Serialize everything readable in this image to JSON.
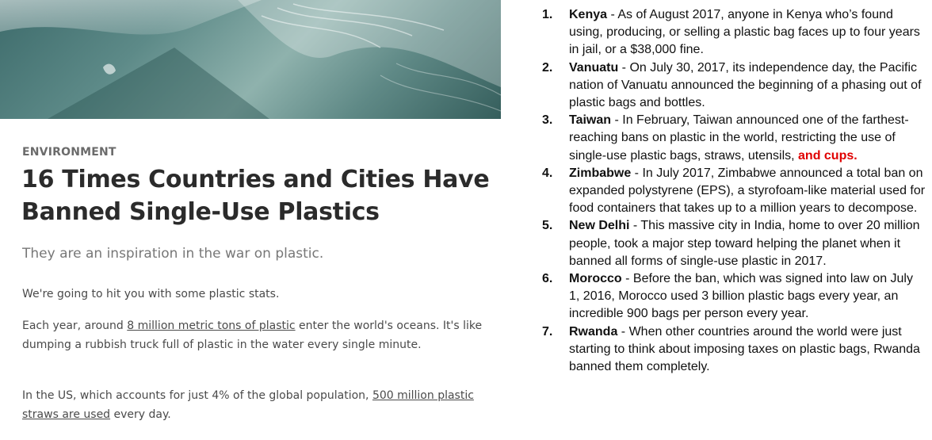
{
  "article": {
    "category": "ENVIRONMENT",
    "title": "16 Times Countries and Cities Have Banned Single-Use Plastics",
    "subtitle": "They are an inspiration in the war on plastic.",
    "p1": "We're going to hit you with some plastic stats.",
    "p2_before": "Each year, around ",
    "p2_link": "8 million metric tons of plastic",
    "p2_after": " enter the world's oceans. It's like dumping a rubbish truck full of plastic in the water every single minute.",
    "p3_before": "In the US, which accounts for just 4% of the global population, ",
    "p3_link": "500 million plastic straws are used",
    "p3_after": " every day."
  },
  "list": [
    {
      "num": "1.",
      "country": "Kenya",
      "text": " - As of August 2017, anyone in Kenya who’s found using, producing, or selling a plastic bag faces up to four years in jail, or a $38,000 fine."
    },
    {
      "num": "2.",
      "country": "Vanuatu",
      "text": " - On July 30, 2017, its independence day, the Pacific nation of Vanuatu announced the beginning of a phasing out of plastic bags and bottles."
    },
    {
      "num": "3.",
      "country": "Taiwan",
      "text": " - In February, Taiwan announced one of the farthest-reaching bans on plastic in the world, restricting the use of single-use plastic bags, straws, utensils, ",
      "highlight": "and cups."
    },
    {
      "num": "4.",
      "country": "Zimbabwe",
      "text": " - In July 2017, Zimbabwe announced a total ban on expanded polystyrene (EPS), a styrofoam-like material used for food containers that takes up to a million years to decompose."
    },
    {
      "num": "5.",
      "country": "New Delhi",
      "text": " - This massive city in India, home to over 20 million people, took a major step toward helping the planet when it banned all forms of single-use plastic in 2017."
    },
    {
      "num": "6.",
      "country": "Morocco",
      "text": " - Before the ban, which was signed into law on July 1, 2016, Morocco used 3 billion plastic bags every year, an incredible 900 bags per person every year."
    },
    {
      "num": "7.",
      "country": "Rwanda",
      "text": " - When other countries around the world were just starting to think about imposing taxes on plastic bags, Rwanda banned them completely."
    }
  ],
  "colors": {
    "highlight": "#e00000",
    "water": "#4f7d7b"
  }
}
